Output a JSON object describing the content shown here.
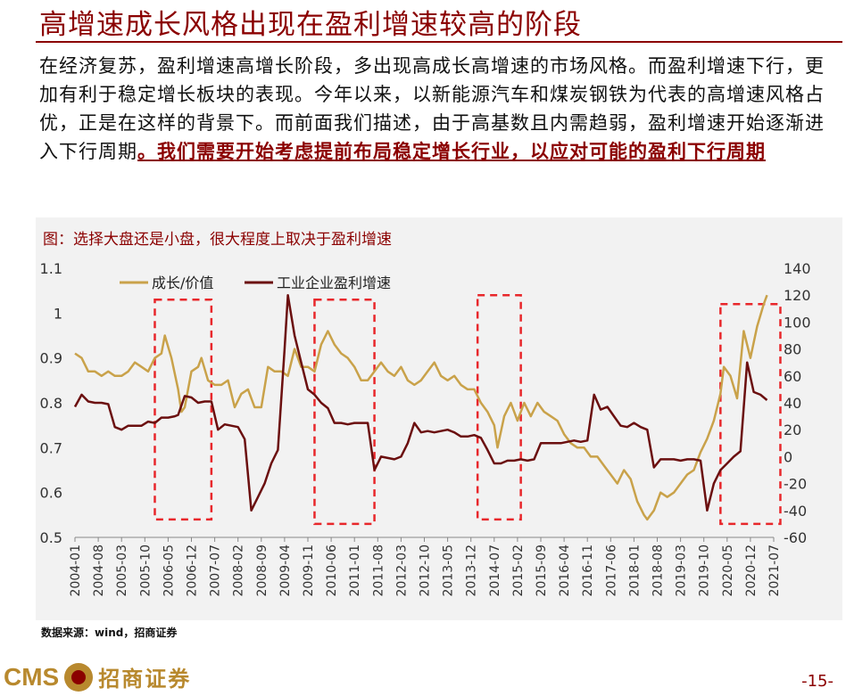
{
  "header": {
    "title": "高增速成长风格出现在盈利增速较高的阶段"
  },
  "body": {
    "text_plain": "在经济复苏，盈利增速高增长阶段，多出现高成长高增速的市场风格。而盈利增速下行，更加有利于稳定增长板块的表现。今年以来，以新能源汽车和煤炭钢铁为代表的高增速风格占优，正是在这样的背景下。而前面我们描述，由于高基数且内需趋弱，盈利增速开始逐渐进入下行周期",
    "text_emphasis": "。我们需要开始考虑提前布局稳定增长行业，以应对可能的盈利下行周期"
  },
  "chart_caption": "图：选择大盘还是小盘，很大程度上取决于盈利增速",
  "source": "数据来源：wind，招商证券",
  "logo": {
    "cms": "CMS",
    "name": "招商证券"
  },
  "page_number": "-15-",
  "colors": {
    "growth_line": "#c9a24a",
    "profit_line": "#6b0f0f",
    "box": "#e8272b",
    "accent": "#8b0000"
  },
  "chart_data": {
    "type": "line",
    "title": "",
    "legend": [
      "成长/价值",
      "工业企业盈利增速"
    ],
    "legend_position": "top-left",
    "y_left": {
      "ticks": [
        "1.1",
        "1",
        "0.9",
        "0.8",
        "0.7",
        "0.6",
        "0.5"
      ],
      "range": [
        0.5,
        1.1
      ]
    },
    "y_right": {
      "ticks": [
        "140",
        "120",
        "100",
        "80",
        "60",
        "40",
        "20",
        "0",
        "-20",
        "-40",
        "-60"
      ],
      "range": [
        -60,
        140
      ]
    },
    "x_ticks": [
      "2004-01",
      "2004-08",
      "2005-03",
      "2005-10",
      "2006-05",
      "2006-12",
      "2007-07",
      "2008-02",
      "2008-09",
      "2009-04",
      "2009-11",
      "2010-06",
      "2011-01",
      "2011-08",
      "2012-03",
      "2012-10",
      "2013-05",
      "2013-12",
      "2014-07",
      "2015-02",
      "2015-09",
      "2016-04",
      "2016-11",
      "2017-06",
      "2018-01",
      "2018-08",
      "2019-03",
      "2019-10",
      "2020-05",
      "2020-12",
      "2021-07"
    ],
    "growth_points": [
      [
        0,
        0.91
      ],
      [
        2,
        0.9
      ],
      [
        4,
        0.87
      ],
      [
        6,
        0.87
      ],
      [
        8,
        0.86
      ],
      [
        10,
        0.87
      ],
      [
        12,
        0.86
      ],
      [
        14,
        0.86
      ],
      [
        16,
        0.87
      ],
      [
        18,
        0.89
      ],
      [
        20,
        0.88
      ],
      [
        22,
        0.87
      ],
      [
        24,
        0.9
      ],
      [
        26,
        0.91
      ],
      [
        27,
        0.95
      ],
      [
        29,
        0.9
      ],
      [
        31,
        0.83
      ],
      [
        32,
        0.78
      ],
      [
        33,
        0.79
      ],
      [
        35,
        0.87
      ],
      [
        37,
        0.88
      ],
      [
        38,
        0.9
      ],
      [
        40,
        0.85
      ],
      [
        42,
        0.84
      ],
      [
        44,
        0.84
      ],
      [
        46,
        0.85
      ],
      [
        48,
        0.79
      ],
      [
        50,
        0.82
      ],
      [
        52,
        0.83
      ],
      [
        54,
        0.79
      ],
      [
        56,
        0.79
      ],
      [
        58,
        0.88
      ],
      [
        60,
        0.87
      ],
      [
        62,
        0.87
      ],
      [
        64,
        0.86
      ],
      [
        66,
        0.92
      ],
      [
        68,
        0.88
      ],
      [
        70,
        0.88
      ],
      [
        72,
        0.87
      ],
      [
        74,
        0.93
      ],
      [
        76,
        0.96
      ],
      [
        78,
        0.93
      ],
      [
        80,
        0.91
      ],
      [
        82,
        0.9
      ],
      [
        84,
        0.88
      ],
      [
        86,
        0.85
      ],
      [
        88,
        0.85
      ],
      [
        90,
        0.87
      ],
      [
        92,
        0.89
      ],
      [
        94,
        0.87
      ],
      [
        96,
        0.86
      ],
      [
        98,
        0.88
      ],
      [
        100,
        0.85
      ],
      [
        102,
        0.84
      ],
      [
        104,
        0.85
      ],
      [
        106,
        0.87
      ],
      [
        108,
        0.89
      ],
      [
        110,
        0.86
      ],
      [
        112,
        0.85
      ],
      [
        114,
        0.86
      ],
      [
        116,
        0.84
      ],
      [
        118,
        0.83
      ],
      [
        120,
        0.83
      ],
      [
        122,
        0.8
      ],
      [
        124,
        0.78
      ],
      [
        126,
        0.75
      ],
      [
        127,
        0.7
      ],
      [
        129,
        0.77
      ],
      [
        131,
        0.8
      ],
      [
        133,
        0.76
      ],
      [
        135,
        0.8
      ],
      [
        137,
        0.77
      ],
      [
        139,
        0.8
      ],
      [
        141,
        0.78
      ],
      [
        143,
        0.77
      ],
      [
        145,
        0.76
      ],
      [
        147,
        0.73
      ],
      [
        149,
        0.71
      ],
      [
        151,
        0.7
      ],
      [
        153,
        0.7
      ],
      [
        155,
        0.68
      ],
      [
        157,
        0.68
      ],
      [
        159,
        0.66
      ],
      [
        161,
        0.64
      ],
      [
        163,
        0.62
      ],
      [
        165,
        0.65
      ],
      [
        167,
        0.63
      ],
      [
        169,
        0.58
      ],
      [
        171,
        0.55
      ],
      [
        172,
        0.54
      ],
      [
        174,
        0.56
      ],
      [
        176,
        0.6
      ],
      [
        178,
        0.59
      ],
      [
        180,
        0.6
      ],
      [
        182,
        0.62
      ],
      [
        184,
        0.64
      ],
      [
        186,
        0.65
      ],
      [
        188,
        0.69
      ],
      [
        190,
        0.72
      ],
      [
        192,
        0.76
      ],
      [
        194,
        0.82
      ],
      [
        195,
        0.88
      ],
      [
        197,
        0.86
      ],
      [
        199,
        0.81
      ],
      [
        201,
        0.96
      ],
      [
        203,
        0.9
      ],
      [
        205,
        0.97
      ],
      [
        207,
        1.02
      ],
      [
        208,
        1.04
      ]
    ],
    "profit_points": [
      [
        0,
        37
      ],
      [
        2,
        46
      ],
      [
        4,
        41
      ],
      [
        6,
        40
      ],
      [
        8,
        40
      ],
      [
        10,
        39
      ],
      [
        12,
        22
      ],
      [
        14,
        20
      ],
      [
        16,
        23
      ],
      [
        18,
        23
      ],
      [
        20,
        23
      ],
      [
        22,
        26
      ],
      [
        24,
        25
      ],
      [
        26,
        29
      ],
      [
        28,
        29
      ],
      [
        30,
        30
      ],
      [
        31,
        31
      ],
      [
        33,
        45
      ],
      [
        35,
        44
      ],
      [
        37,
        40
      ],
      [
        39,
        41
      ],
      [
        41,
        41
      ],
      [
        43,
        20
      ],
      [
        45,
        24
      ],
      [
        47,
        23
      ],
      [
        49,
        22
      ],
      [
        51,
        13
      ],
      [
        53,
        -40
      ],
      [
        55,
        -30
      ],
      [
        57,
        -20
      ],
      [
        59,
        -5
      ],
      [
        61,
        5
      ],
      [
        63,
        80
      ],
      [
        64,
        120
      ],
      [
        66,
        90
      ],
      [
        68,
        70
      ],
      [
        70,
        50
      ],
      [
        72,
        46
      ],
      [
        74,
        40
      ],
      [
        76,
        36
      ],
      [
        78,
        25
      ],
      [
        80,
        25
      ],
      [
        82,
        24
      ],
      [
        84,
        25
      ],
      [
        86,
        25
      ],
      [
        88,
        25
      ],
      [
        90,
        -10
      ],
      [
        92,
        0
      ],
      [
        94,
        -1
      ],
      [
        96,
        -2
      ],
      [
        98,
        0
      ],
      [
        100,
        10
      ],
      [
        102,
        25
      ],
      [
        104,
        18
      ],
      [
        106,
        19
      ],
      [
        108,
        18
      ],
      [
        110,
        19
      ],
      [
        112,
        20
      ],
      [
        114,
        18
      ],
      [
        116,
        15
      ],
      [
        118,
        15
      ],
      [
        120,
        16
      ],
      [
        122,
        14
      ],
      [
        124,
        5
      ],
      [
        126,
        -5
      ],
      [
        128,
        -5
      ],
      [
        130,
        -3
      ],
      [
        132,
        -3
      ],
      [
        134,
        -2
      ],
      [
        136,
        -3
      ],
      [
        138,
        -2
      ],
      [
        140,
        10
      ],
      [
        142,
        10
      ],
      [
        144,
        10
      ],
      [
        146,
        10
      ],
      [
        148,
        11
      ],
      [
        150,
        12
      ],
      [
        152,
        11
      ],
      [
        154,
        12
      ],
      [
        156,
        46
      ],
      [
        158,
        35
      ],
      [
        160,
        37
      ],
      [
        162,
        30
      ],
      [
        164,
        23
      ],
      [
        166,
        22
      ],
      [
        168,
        25
      ],
      [
        170,
        22
      ],
      [
        172,
        20
      ],
      [
        174,
        -8
      ],
      [
        176,
        -2
      ],
      [
        178,
        -2
      ],
      [
        180,
        -2
      ],
      [
        182,
        -3
      ],
      [
        184,
        -2
      ],
      [
        186,
        -2
      ],
      [
        188,
        -3
      ],
      [
        190,
        -40
      ],
      [
        192,
        -20
      ],
      [
        194,
        -10
      ],
      [
        196,
        -5
      ],
      [
        198,
        0
      ],
      [
        200,
        4
      ],
      [
        202,
        70
      ],
      [
        204,
        48
      ],
      [
        206,
        46
      ],
      [
        208,
        42
      ]
    ],
    "highlight_boxes": [
      {
        "x_range": [
          24,
          41
        ],
        "y_range": [
          0.54,
          1.03
        ]
      },
      {
        "x_range": [
          72,
          90
        ],
        "y_range": [
          0.53,
          1.03
        ]
      },
      {
        "x_range": [
          121,
          134
        ],
        "y_range": [
          0.54,
          1.04
        ]
      },
      {
        "x_range": [
          194,
          212
        ],
        "y_range": [
          0.53,
          1.02
        ]
      }
    ]
  }
}
